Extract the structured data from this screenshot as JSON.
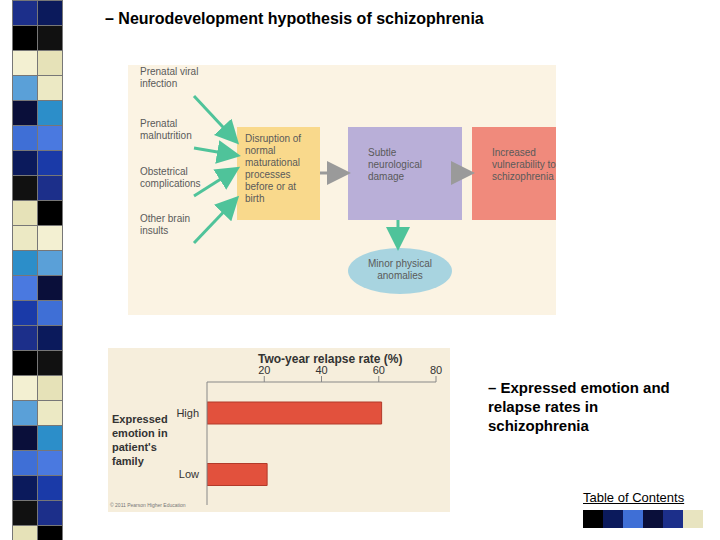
{
  "header": {
    "title": "– Neurodevelopment hypothesis of schizophrenia"
  },
  "diagram": {
    "causes": [
      "Prenatal viral infection",
      "Prenatal malnutrition",
      "Obstetrical complications",
      "Other brain insults"
    ],
    "nodes": [
      "Disruption of normal maturational processes before or at birth",
      "Subtle neurological damage",
      "Increased vulnerability to schizophrenia"
    ],
    "outcome": "Minor physical anomalies"
  },
  "chart_data": {
    "type": "bar",
    "orientation": "horizontal",
    "title": "Two-year relapse rate (%)",
    "y_label": "Expressed emotion in patient's family",
    "categories": [
      "High",
      "Low"
    ],
    "values": [
      61,
      21
    ],
    "color": "#e2513d",
    "xlim": [
      0,
      80
    ],
    "xticks": [
      20,
      40,
      60,
      80
    ],
    "grid": false,
    "credit": "© 2011 Pearson Higher Education"
  },
  "caption": "– Expressed emotion and relapse rates in schizophrenia",
  "footer": "Table of Contents"
}
